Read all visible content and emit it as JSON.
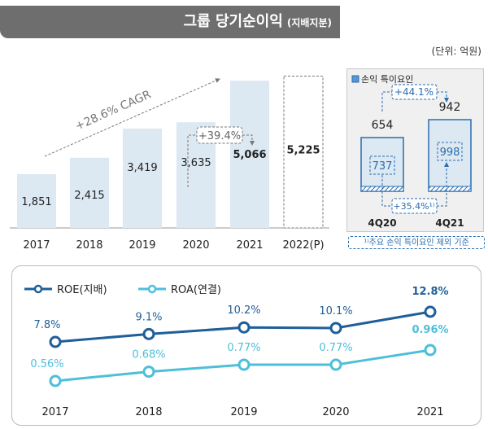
{
  "title": {
    "main": "그룹 당기순이익",
    "sub": "(지배지분)"
  },
  "unit": "(단위: 억원)",
  "chart_data": [
    {
      "type": "bar",
      "categories": [
        "2017",
        "2018",
        "2019",
        "2020",
        "2021",
        "2022(P)"
      ],
      "values": [
        1851,
        2415,
        3419,
        3635,
        5066,
        5225
      ],
      "value_labels": [
        "1,851",
        "2,415",
        "3,419",
        "3,635",
        "5,066",
        "5,225"
      ],
      "annotations": [
        "+28.6% CAGR",
        "+39.4%"
      ],
      "colors": {
        "bar": "#dce8f2",
        "projected": "dashed"
      }
    },
    {
      "type": "bar",
      "legend": "손익 특이요인",
      "categories": [
        "4Q20",
        "4Q21"
      ],
      "values": [
        654,
        942
      ],
      "adjusted_values": [
        737,
        998
      ],
      "annotations": [
        "+44.1%",
        "+35.4%¹⁾"
      ],
      "footnote": "¹⁾주요 손익 특이요인 제외 기준",
      "colors": {
        "bar": "#dce8f2",
        "border": "#2a6cb0"
      }
    },
    {
      "type": "line",
      "categories": [
        "2017",
        "2018",
        "2019",
        "2020",
        "2021"
      ],
      "series": [
        {
          "name": "ROE(지배)",
          "values": [
            7.8,
            9.1,
            10.2,
            10.1,
            12.8
          ],
          "labels": [
            "7.8%",
            "9.1%",
            "10.2%",
            "10.1%",
            "12.8%"
          ],
          "color": "#1f5f99"
        },
        {
          "name": "ROA(연결)",
          "values": [
            0.56,
            0.68,
            0.77,
            0.77,
            0.96
          ],
          "labels": [
            "0.56%",
            "0.68%",
            "0.77%",
            "0.77%",
            "0.96%"
          ],
          "color": "#4dbfd9"
        }
      ]
    }
  ]
}
